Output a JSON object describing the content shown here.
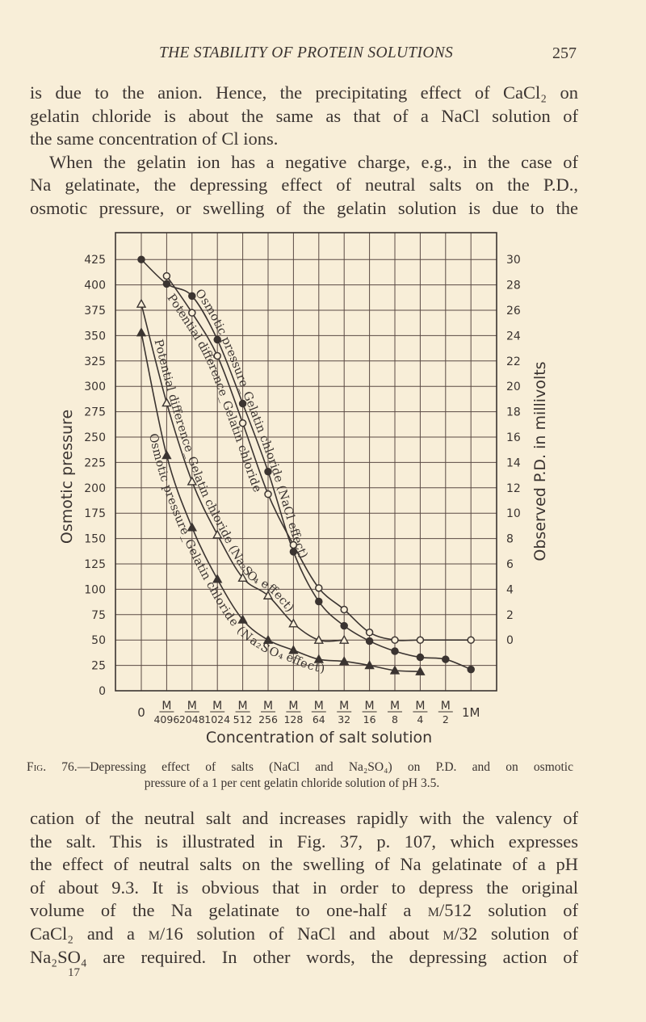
{
  "header": {
    "title": "THE STABILITY OF PROTEIN SOLUTIONS",
    "page": "257"
  },
  "para_top": {
    "lines": [
      "is due to the anion.  Hence, the precipitating effect of CaCl₂ on",
      "gelatin chloride is about the same as that of a NaCl solution of",
      "the same concentration of Cl ions.",
      "When the gelatin ion has a negative charge, e.g., in the case of",
      "Na gelatinate, the depressing effect of neutral salts on the P.D.,",
      "osmotic pressure, or swelling of the gelatin solution is due to the"
    ]
  },
  "figure": {
    "caption_lead": "Fig. 76.",
    "caption_line1": "—Depressing effect of salts (NaCl and Na₂SO₄) on P.D. and on osmotic",
    "caption_line2": "pressure of a 1 per cent gelatin chloride solution of pH 3.5."
  },
  "chart_data": {
    "type": "line",
    "xlabel": "Concentration of salt solution",
    "ylabel": "Osmotic pressure",
    "ylabel_right": "Observed P.D. in millivolts",
    "categories": [
      "0",
      "M/4096",
      "M/2048",
      "M/1024",
      "M/512",
      "M/256",
      "M/128",
      "M/64",
      "M/32",
      "M/16",
      "M/8",
      "M/4",
      "M/2",
      "1M"
    ],
    "yticks": [
      0,
      25,
      50,
      75,
      100,
      125,
      150,
      175,
      200,
      225,
      250,
      275,
      300,
      325,
      350,
      375,
      400,
      425
    ],
    "yticks_right": [
      0,
      2,
      4,
      6,
      8,
      10,
      12,
      14,
      16,
      18,
      20,
      22,
      24,
      26,
      28,
      30
    ],
    "right_axis_map": {
      "zero_at_left": 50,
      "left_units_per_mv": 12.5
    },
    "grid": true,
    "colors": {
      "ink": "#3b3431",
      "grid": "#5a4a44",
      "paper": "#f8eed8"
    },
    "series": [
      {
        "name": "Osmotic pressure_Gelatin chloride (NaCl effect)",
        "axis": "left",
        "marker": "filled-circle",
        "values": [
          425,
          401,
          389,
          346,
          283,
          216,
          137,
          88,
          64,
          49,
          39,
          33,
          31,
          21
        ]
      },
      {
        "name": "Potential difference_Gelatin chloride",
        "axis": "right",
        "marker": "open-circle",
        "values": [
          null,
          28.7,
          25.8,
          22.4,
          17.1,
          11.5,
          7.5,
          4.1,
          2.4,
          0.6,
          0,
          0,
          null,
          0
        ]
      },
      {
        "name": "Potential difference_Gelatin chloride (Na₂SO₄ effect)",
        "axis": "right",
        "marker": "open-triangle",
        "values": [
          26.5,
          18.7,
          12.5,
          8.3,
          4.9,
          3.5,
          1.3,
          0,
          0,
          null,
          null,
          null,
          null,
          null
        ]
      },
      {
        "name": "Osmotic pressure_Gelatin chloride (Na₂SO₄ effect)",
        "axis": "left",
        "marker": "filled-triangle",
        "values": [
          353,
          232,
          161,
          110,
          70,
          50,
          40,
          31,
          29,
          25,
          20,
          19,
          null,
          null
        ]
      }
    ]
  },
  "para_bottom": {
    "l1": "cation of  the neutral salt and increases rapidly with the valency of",
    "l2": "the salt.  This is illustrated in Fig. 37, p. 107, which expresses",
    "l3": "the effect of neutral salts on the swelling of Na gelatinate of a pH",
    "l4": "of about 9.3.  It is obvious that in order to depress the original",
    "l5a": "volume of the Na gelatinate to one-half a ",
    "l5b": "m/512",
    "l5c": " solution of",
    "l6a": "CaCl₂ and a ",
    "l6b": "m/16",
    "l6c": " solution of NaCl and about ",
    "l6d": "m/32",
    "l6e": " solution of",
    "l7": "Na₂SO₄ are required.  In other words, the depressing action of"
  },
  "footer": {
    "signature": "17"
  }
}
